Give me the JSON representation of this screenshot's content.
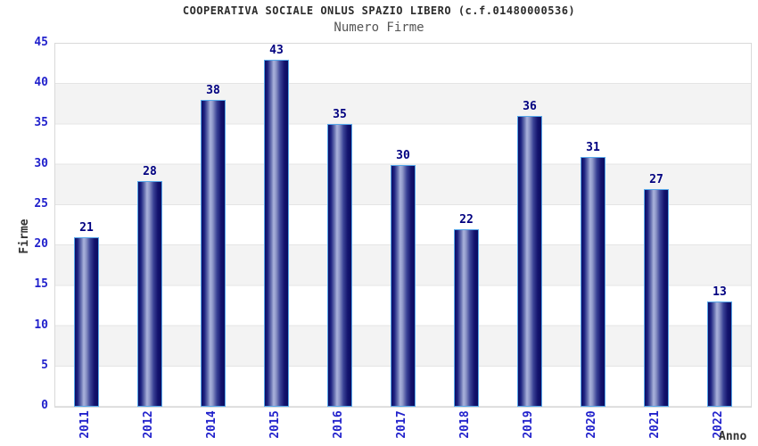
{
  "chart_data": {
    "type": "bar",
    "title": "COOPERATIVA SOCIALE ONLUS SPAZIO LIBERO (c.f.01480000536)",
    "subtitle": "Numero Firme",
    "xlabel": "Anno",
    "ylabel": "Firme",
    "categories": [
      "2011",
      "2012",
      "2014",
      "2015",
      "2016",
      "2017",
      "2018",
      "2019",
      "2020",
      "2021",
      "2022"
    ],
    "values": [
      21,
      28,
      38,
      43,
      35,
      30,
      22,
      36,
      31,
      27,
      13
    ],
    "ylim": [
      0,
      45
    ],
    "ytick_step": 5,
    "yticks": [
      0,
      5,
      10,
      15,
      20,
      25,
      30,
      35,
      40,
      45
    ],
    "legend": "none",
    "grid": "alternating horizontal bands every 5 units with light gridlines",
    "value_labels": "above each bar",
    "x_tick_rotation_degrees": -90,
    "colors": {
      "bar_body_dark": "#0d0d66",
      "bar_body_highlight": "#aab2dc",
      "bar_border": "#56a7ea",
      "value_label": "#000080",
      "tick_label": "#2222cc",
      "axis_label": "#333333",
      "title": "#2b2b2b",
      "subtitle": "#555555",
      "band_light": "#ffffff",
      "band_gray": "#f3f3f3",
      "plot_border": "#d9d9d9",
      "gridline": "#e4e4e4",
      "background": "#ffffff"
    }
  }
}
